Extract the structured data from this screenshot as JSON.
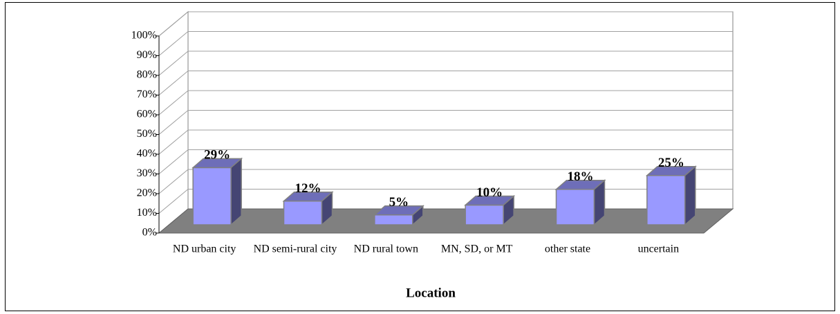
{
  "chart_data": {
    "type": "bar3d",
    "x_label": "Location",
    "categories": [
      "ND urban city",
      "ND semi-rural city",
      "ND rural town",
      "MN, SD, or MT",
      "other state",
      "uncertain"
    ],
    "values": [
      29,
      12,
      5,
      10,
      18,
      25
    ],
    "value_labels": [
      "29%",
      "12%",
      "5%",
      "10%",
      "18%",
      "25%"
    ],
    "color": "#9999ff",
    "ylim": [
      0,
      100
    ],
    "yticks": [
      {
        "value": 0,
        "label": "0%"
      },
      {
        "value": 10,
        "label": "10%"
      },
      {
        "value": 20,
        "label": "20%"
      },
      {
        "value": 30,
        "label": "30%"
      },
      {
        "value": 40,
        "label": "40%"
      },
      {
        "value": 50,
        "label": "50%"
      },
      {
        "value": 60,
        "label": "60%"
      },
      {
        "value": 70,
        "label": "70%"
      },
      {
        "value": 80,
        "label": "80%"
      },
      {
        "value": 90,
        "label": "90%"
      },
      {
        "value": 100,
        "label": "100%"
      }
    ],
    "grid": true
  }
}
